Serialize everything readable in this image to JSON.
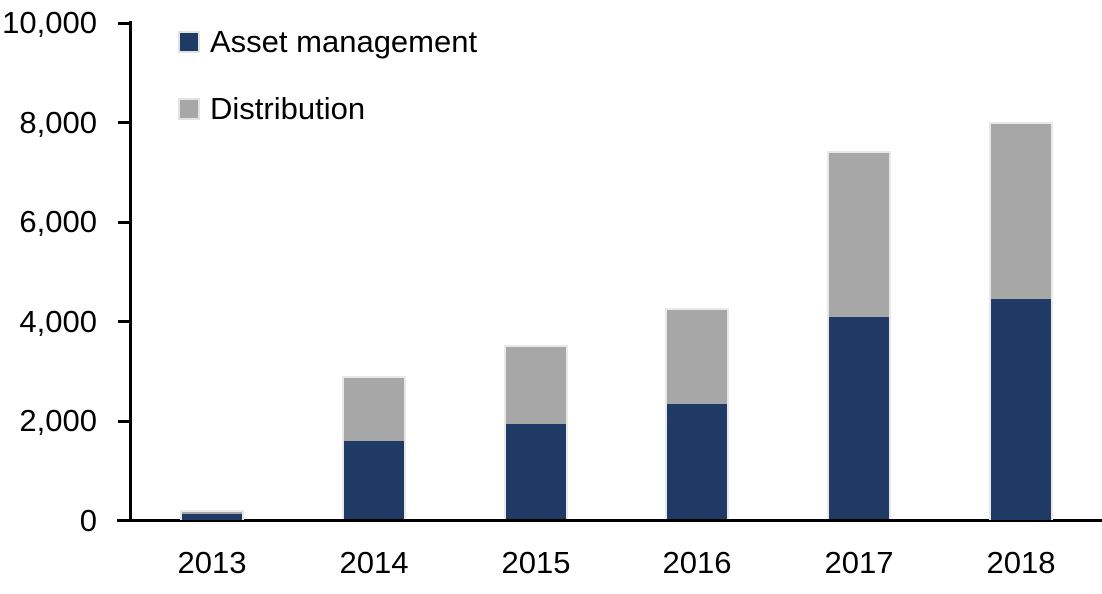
{
  "chart_data": {
    "type": "bar",
    "stacked": true,
    "title": "",
    "xlabel": "",
    "ylabel": "",
    "categories": [
      "2013",
      "2014",
      "2015",
      "2016",
      "2017",
      "2018"
    ],
    "series": [
      {
        "name": "Asset management",
        "color": "#1f3a64",
        "values": [
          110,
          1570,
          1910,
          2330,
          4060,
          4440
        ]
      },
      {
        "name": "Distribution",
        "color": "#a7a7a7",
        "values": [
          90,
          1310,
          1590,
          1920,
          3340,
          3560
        ]
      }
    ],
    "totals": [
      200,
      2880,
      3500,
      4250,
      7400,
      8000
    ],
    "ylim": [
      0,
      10000
    ],
    "y_tick_values": [
      0,
      2000,
      4000,
      6000,
      8000,
      10000
    ],
    "y_tick_labels": [
      "0",
      "2,000",
      "4,000",
      "6,000",
      "8,000",
      "10,000"
    ],
    "grid": false,
    "legend_position": "top-left",
    "axis_color": "#000000",
    "bar_outline_color": "#e8e8e8",
    "background": "#ffffff",
    "text_color": "#000000"
  }
}
